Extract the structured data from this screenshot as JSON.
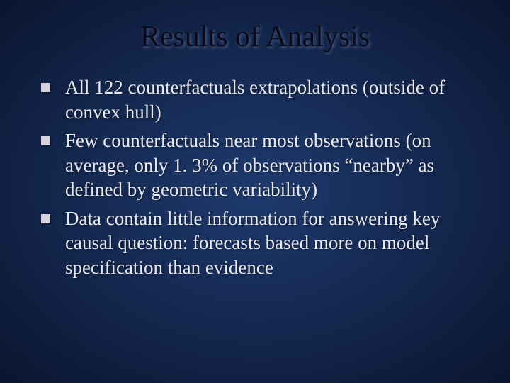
{
  "slide": {
    "title": "Results of Analysis",
    "bullets": [
      "All 122 counterfactuals extrapolations (outside of convex hull)",
      "Few counterfactuals near most observations (on average, only 1. 3% of observations “nearby” as defined by geometric variability)",
      "Data contain little information for answering key causal question:  forecasts based more on model specification than evidence"
    ],
    "colors": {
      "background_inner": "#1e3a6e",
      "background_outer": "#0a1530",
      "title_color": "#0a0a1a",
      "body_text_color": "#e8e8f2",
      "bullet_color": "#d4d4e0"
    },
    "typography": {
      "title_fontsize": 42,
      "body_fontsize": 27,
      "font_family": "Times New Roman"
    }
  }
}
